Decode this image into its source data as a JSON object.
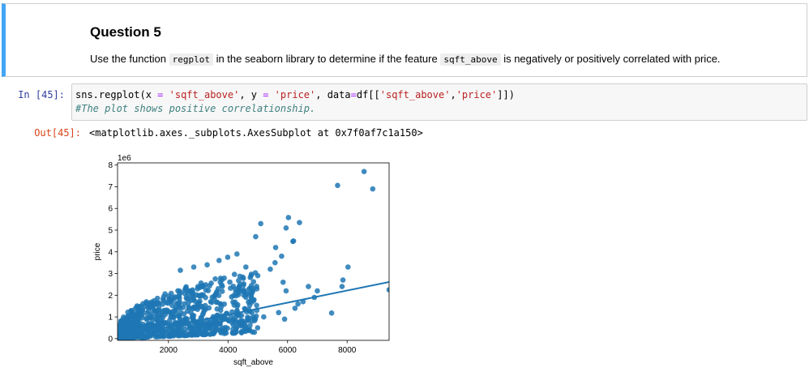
{
  "markdown": {
    "title": "Question 5",
    "text_1": "Use the function",
    "code_1": "regplot",
    "text_2": "in the seaborn library to determine if the feature",
    "code_2": "sqft_above",
    "text_3": "is negatively or positively correlated with price."
  },
  "code_cell": {
    "prompt": "In [45]:",
    "line1": {
      "p1": "sns.regplot(x ",
      "eq1": "=",
      "s1": " 'sqft_above'",
      "p2": ", y ",
      "eq2": "=",
      "s2": " 'price'",
      "p3": ", data",
      "eq3": "=",
      "p4": "df[[",
      "s3": "'sqft_above'",
      "p5": ",",
      "s4": "'price'",
      "p6": "]])"
    },
    "line2": "#The plot shows positive correlationship."
  },
  "output_cell": {
    "prompt": "Out[45]:",
    "text": "<matplotlib.axes._subplots.AxesSubplot at 0x7f0af7c1a150>"
  },
  "chart_data": {
    "type": "scatter",
    "xlabel": "sqft_above",
    "ylabel": "price",
    "y_offset_text": "1e6",
    "xlim": [
      290,
      9410
    ],
    "ylim": [
      -0.08,
      8.1
    ],
    "y_unit": "millions",
    "xticks": [
      2000,
      4000,
      6000,
      8000
    ],
    "xtick_labels": [
      "2000",
      "4000",
      "6000",
      "8000"
    ],
    "yticks": [
      0,
      1,
      2,
      3,
      4,
      5,
      6,
      7,
      8
    ],
    "ytick_labels": [
      "0",
      "1",
      "2",
      "3",
      "4",
      "5",
      "6",
      "7",
      "8"
    ],
    "grid": false,
    "point_color": "#1f77b4",
    "regression_line": {
      "x": [
        290,
        9410
      ],
      "y": [
        0.06,
        2.61
      ]
    },
    "outliers": [
      {
        "x": 8570,
        "y": 7.7
      },
      {
        "x": 8860,
        "y": 6.9
      },
      {
        "x": 7680,
        "y": 7.06
      },
      {
        "x": 9410,
        "y": 2.25
      },
      {
        "x": 8030,
        "y": 3.3
      },
      {
        "x": 7860,
        "y": 2.7
      },
      {
        "x": 7830,
        "y": 2.4
      },
      {
        "x": 7480,
        "y": 1.18
      },
      {
        "x": 6400,
        "y": 5.35
      },
      {
        "x": 6030,
        "y": 5.58
      },
      {
        "x": 5950,
        "y": 5.1
      },
      {
        "x": 6200,
        "y": 4.5
      },
      {
        "x": 6180,
        "y": 4.48
      },
      {
        "x": 5100,
        "y": 5.3
      },
      {
        "x": 4930,
        "y": 4.7
      },
      {
        "x": 5600,
        "y": 4.2
      },
      {
        "x": 5800,
        "y": 3.8
      },
      {
        "x": 5580,
        "y": 3.5
      },
      {
        "x": 5420,
        "y": 3.2
      },
      {
        "x": 6700,
        "y": 2.4
      },
      {
        "x": 6900,
        "y": 1.9
      },
      {
        "x": 6520,
        "y": 1.7
      },
      {
        "x": 6250,
        "y": 1.4
      },
      {
        "x": 5850,
        "y": 2.6
      },
      {
        "x": 5950,
        "y": 2.2
      },
      {
        "x": 4300,
        "y": 3.9
      },
      {
        "x": 3990,
        "y": 3.75
      },
      {
        "x": 3700,
        "y": 3.6
      },
      {
        "x": 3300,
        "y": 3.4
      },
      {
        "x": 2850,
        "y": 3.3
      },
      {
        "x": 2400,
        "y": 3.15
      },
      {
        "x": 4600,
        "y": 3.3
      },
      {
        "x": 5000,
        "y": 2.9
      },
      {
        "x": 5700,
        "y": 1.2
      },
      {
        "x": 5200,
        "y": 1.0
      },
      {
        "x": 4800,
        "y": 0.8
      },
      {
        "x": 5900,
        "y": 0.9
      },
      {
        "x": 6350,
        "y": 1.6
      },
      {
        "x": 7000,
        "y": 2.2
      }
    ],
    "dense_region": {
      "x_range": [
        370,
        5000
      ],
      "y_at_x_min": [
        0.0,
        0.6
      ],
      "y_at_x_mid": [
        0.1,
        2.6
      ],
      "y_at_x_max": [
        0.3,
        3.2
      ],
      "count": 900
    }
  }
}
